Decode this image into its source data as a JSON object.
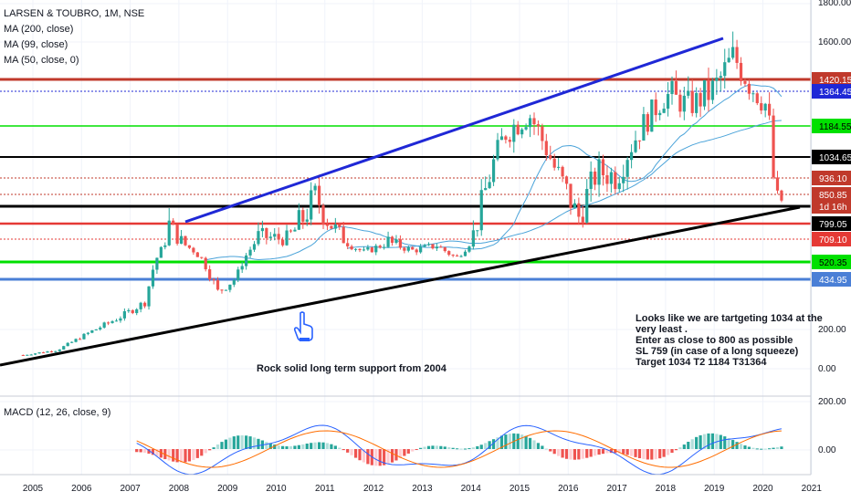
{
  "legend": {
    "title": "LARSEN & TOUBRO, 1M, NSE",
    "ma200": "MA (200, close)",
    "ma99": "MA (99, close)",
    "ma50": "MA (50, close, 0)"
  },
  "macd_legend": "MACD (12, 26, close, 9)",
  "annotations": {
    "support_note": "Rock solid long term support from 2004",
    "hand_icon": "pointing-hand-icon",
    "target_note": [
      "Looks like we are tartgeting 1034 at the",
      "very least .",
      "Enter as close to 800 as possible",
      "SL 759 (in case of a long squeeze)",
      "Target 1034 T2 1184 T31364"
    ]
  },
  "colors": {
    "up": "#26a69a",
    "down": "#ef5350",
    "ma": "#4aa3d9",
    "blue_line": "#1f28d6",
    "support_line": "#000000",
    "red_level": "#e53935",
    "brown_level": "#c0392b",
    "green_level": "#00e000",
    "blue_level": "#4a7fd6",
    "macd": "#2962ff",
    "signal": "#ff6d00"
  },
  "chart_data": {
    "type": "candlestick",
    "title": "LARSEN & TOUBRO, 1M, NSE",
    "xlabel": "",
    "ylabel": "",
    "x_ticks": [
      "2005",
      "2006",
      "2007",
      "2008",
      "2009",
      "2010",
      "2011",
      "2012",
      "2013",
      "2014",
      "2015",
      "2016",
      "2017",
      "2018",
      "2019",
      "2020",
      "2021"
    ],
    "y_ticks": [
      "1800.00",
      "1600.00",
      "200.00",
      "0.00"
    ],
    "ylim": [
      0,
      1800
    ],
    "macd_y_ticks": [
      "200.00",
      "0.00"
    ],
    "price_path": [
      [
        2004.8,
        70
      ],
      [
        2005.5,
        95
      ],
      [
        2006.2,
        190
      ],
      [
        2006.8,
        260
      ],
      [
        2007.3,
        330
      ],
      [
        2007.8,
        800
      ],
      [
        2008.3,
        640
      ],
      [
        2008.8,
        380
      ],
      [
        2009.2,
        450
      ],
      [
        2009.6,
        750
      ],
      [
        2010.2,
        730
      ],
      [
        2010.8,
        890
      ],
      [
        2011.3,
        760
      ],
      [
        2011.8,
        620
      ],
      [
        2012.3,
        720
      ],
      [
        2012.8,
        640
      ],
      [
        2013.3,
        690
      ],
      [
        2013.7,
        560
      ],
      [
        2014.2,
        850
      ],
      [
        2014.7,
        1150
      ],
      [
        2015.2,
        1250
      ],
      [
        2015.7,
        1000
      ],
      [
        2016.2,
        820
      ],
      [
        2016.6,
        980
      ],
      [
        2017.0,
        960
      ],
      [
        2017.5,
        1180
      ],
      [
        2018.0,
        1360
      ],
      [
        2018.5,
        1300
      ],
      [
        2019.0,
        1380
      ],
      [
        2019.4,
        1530
      ],
      [
        2019.9,
        1360
      ],
      [
        2020.1,
        1290
      ],
      [
        2020.25,
        860
      ],
      [
        2020.4,
        880
      ]
    ],
    "levels": [
      {
        "label": "1420.15",
        "value": 1420.15,
        "color": "#c0392b"
      },
      {
        "label": "1364.45",
        "value": 1364.45,
        "color": "#1f28d6"
      },
      {
        "label": "1184.55",
        "value": 1184.55,
        "color": "#00e000"
      },
      {
        "label": "1034.65",
        "value": 1034.65,
        "color": "#000000"
      },
      {
        "label": "936.10",
        "value": 936.1,
        "color": "#c0392b"
      },
      {
        "label": "850.85",
        "value": 850.85,
        "color": "#c0392b"
      },
      {
        "label": "1d 16h",
        "value": 820,
        "color": "#e53935"
      },
      {
        "label": "799.05",
        "value": 799.05,
        "color": "#000000"
      },
      {
        "label": "709.10",
        "value": 709.1,
        "color": "#e53935"
      },
      {
        "label": "520.35",
        "value": 520.35,
        "color": "#00e000"
      },
      {
        "label": "434.95",
        "value": 434.95,
        "color": "#4a7fd6"
      }
    ],
    "grid": true,
    "legend_position": "top-left"
  }
}
